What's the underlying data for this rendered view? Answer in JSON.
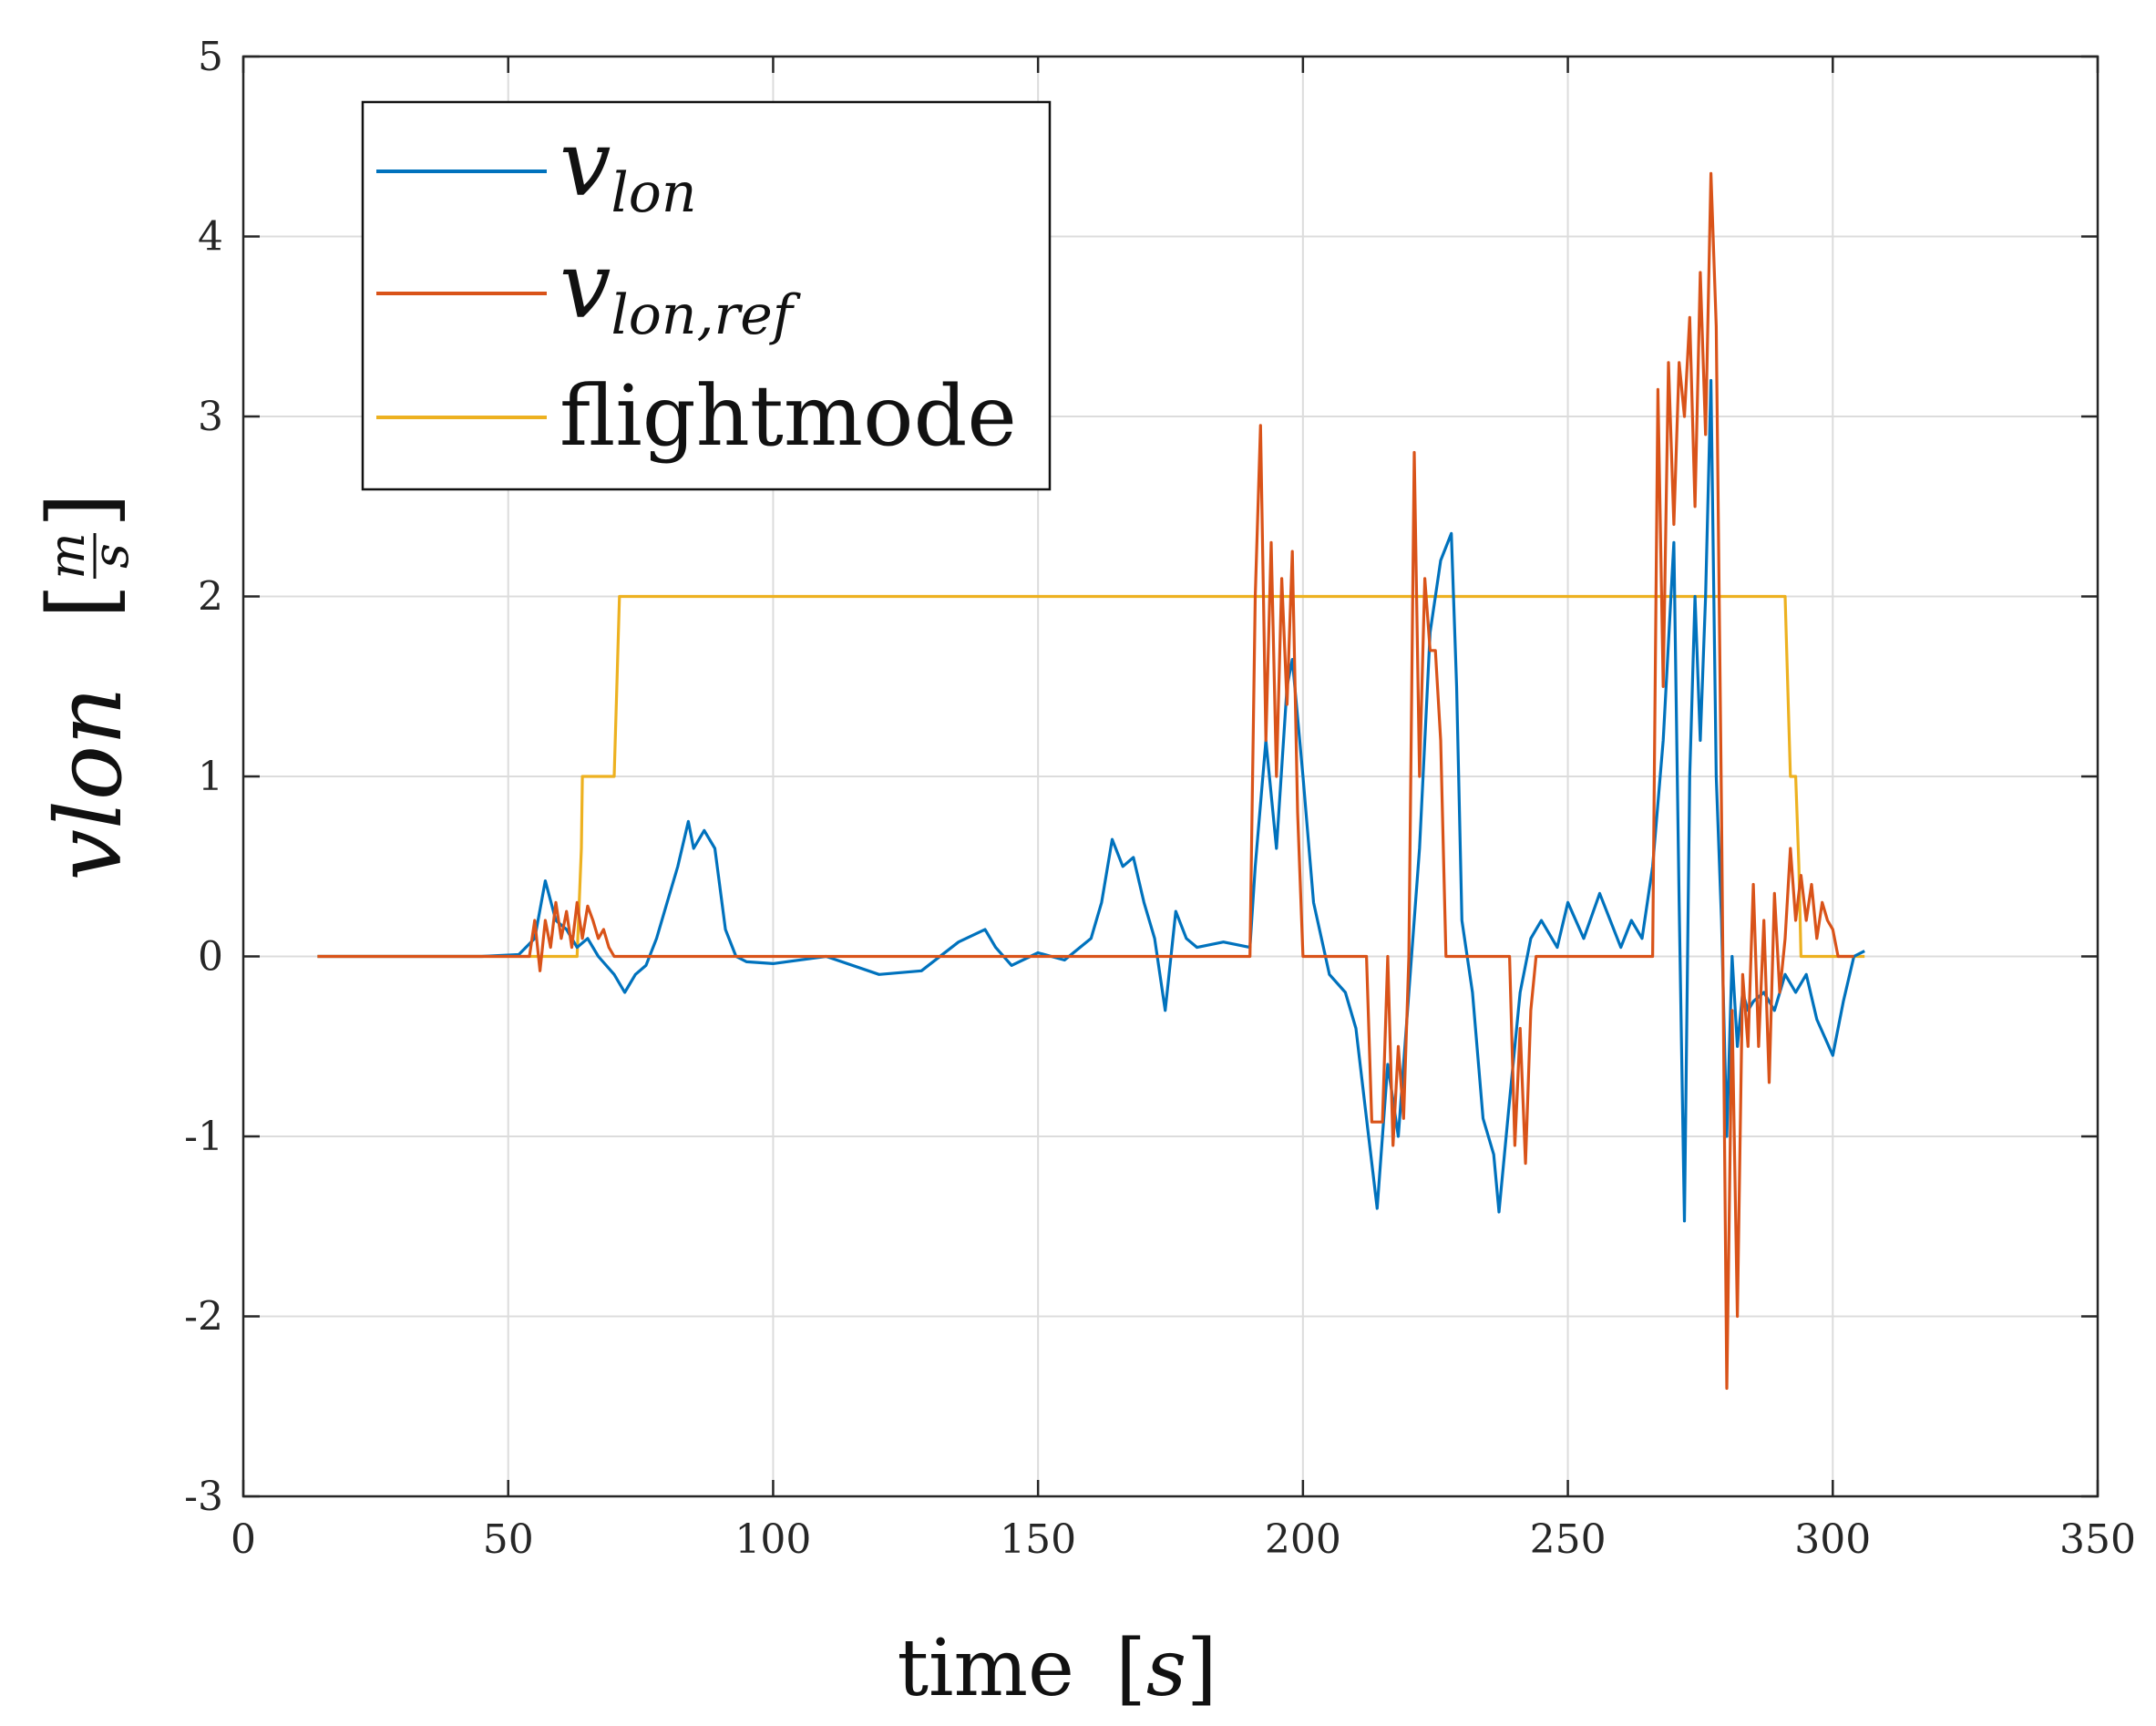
{
  "chart_data": {
    "type": "line",
    "title": "",
    "xlabel": "time",
    "xlabel_unit": "s",
    "ylabel": "vlon",
    "ylabel_unit_num": "m",
    "ylabel_unit_den": "s",
    "xlim": [
      0,
      350
    ],
    "ylim": [
      -3,
      5
    ],
    "xticks": [
      0,
      50,
      100,
      150,
      200,
      250,
      300,
      350
    ],
    "yticks": [
      -3,
      -2,
      -1,
      0,
      1,
      2,
      3,
      4,
      5
    ],
    "grid": true,
    "legend_position": "top-left",
    "series": [
      {
        "name": "v_lon",
        "label_main": "v",
        "label_sub": "lon",
        "color": "#0072BD",
        "x": [
          14,
          30,
          45,
          52,
          55,
          57,
          59,
          61,
          63,
          65,
          67,
          70,
          72,
          74,
          76,
          78,
          80,
          82,
          84,
          85,
          87,
          89,
          91,
          93,
          95,
          100,
          110,
          120,
          128,
          135,
          140,
          142,
          145,
          150,
          155,
          160,
          162,
          164,
          166,
          168,
          170,
          172,
          174,
          176,
          178,
          180,
          185,
          190,
          191,
          193,
          195,
          197,
          198,
          200,
          202,
          205,
          208,
          210,
          212,
          214,
          216,
          218,
          220,
          222,
          224,
          226,
          228,
          229,
          230,
          232,
          234,
          236,
          237,
          239,
          241,
          243,
          245,
          248,
          250,
          253,
          256,
          260,
          262,
          264,
          266,
          268,
          270,
          271,
          272,
          273,
          274,
          275,
          276,
          277,
          278,
          279,
          280,
          281,
          282,
          283,
          284,
          285,
          287,
          289,
          291,
          293,
          295,
          297,
          300,
          302,
          304,
          306
        ],
        "y": [
          0,
          0,
          0,
          0.01,
          0.1,
          0.42,
          0.2,
          0.15,
          0.05,
          0.1,
          0,
          -0.1,
          -0.2,
          -0.1,
          -0.05,
          0.1,
          0.3,
          0.5,
          0.75,
          0.6,
          0.7,
          0.6,
          0.15,
          0,
          -0.03,
          -0.04,
          0,
          -0.1,
          -0.08,
          0.08,
          0.15,
          0.05,
          -0.05,
          0.02,
          -0.02,
          0.1,
          0.3,
          0.65,
          0.5,
          0.55,
          0.3,
          0.1,
          -0.3,
          0.25,
          0.1,
          0.05,
          0.08,
          0.05,
          0.5,
          1.2,
          0.6,
          1.5,
          1.65,
          1.0,
          0.3,
          -0.1,
          -0.2,
          -0.4,
          -0.9,
          -1.4,
          -0.6,
          -1.0,
          -0.2,
          0.6,
          1.8,
          2.2,
          2.35,
          1.5,
          0.2,
          -0.2,
          -0.9,
          -1.1,
          -1.42,
          -0.8,
          -0.2,
          0.1,
          0.2,
          0.05,
          0.3,
          0.1,
          0.35,
          0.05,
          0.2,
          0.1,
          0.5,
          1.2,
          2.3,
          0.3,
          -1.47,
          1.0,
          2.0,
          1.2,
          2.0,
          3.2,
          1.0,
          0.2,
          -1.0,
          0.0,
          -0.5,
          -0.2,
          -0.3,
          -0.25,
          -0.2,
          -0.3,
          -0.1,
          -0.2,
          -0.1,
          -0.35,
          -0.55,
          -0.25,
          0,
          0.03
        ]
      },
      {
        "name": "v_lon,ref",
        "label_main": "v",
        "label_sub": "lon,ref",
        "color": "#D95319",
        "x": [
          14,
          50,
          54,
          55,
          56,
          57,
          58,
          59,
          60,
          61,
          62,
          63,
          64,
          65,
          66,
          67,
          68,
          69,
          70,
          71,
          72,
          100,
          150,
          190,
          191,
          192,
          193,
          194,
          195,
          196,
          197,
          198,
          199,
          200,
          212,
          213,
          214,
          215,
          216,
          217,
          218,
          219,
          220,
          221,
          222,
          223,
          224,
          225,
          226,
          227,
          228,
          230,
          239,
          240,
          241,
          242,
          243,
          244,
          245,
          266,
          267,
          268,
          269,
          270,
          271,
          272,
          273,
          274,
          275,
          276,
          277,
          278,
          279,
          280,
          281,
          282,
          283,
          284,
          285,
          286,
          287,
          288,
          289,
          290,
          291,
          292,
          293,
          294,
          295,
          296,
          297,
          298,
          299,
          300,
          301,
          302,
          303,
          304
        ],
        "y": [
          0,
          0,
          0,
          0.2,
          -0.08,
          0.2,
          0.05,
          0.3,
          0.1,
          0.25,
          0.05,
          0.3,
          0.1,
          0.28,
          0.2,
          0.1,
          0.15,
          0.05,
          0,
          0,
          0,
          0,
          0,
          0,
          2.0,
          2.95,
          1.2,
          2.3,
          1.0,
          2.1,
          1.4,
          2.25,
          0.8,
          0,
          0,
          -0.92,
          -0.92,
          -0.92,
          0,
          -1.05,
          -0.5,
          -0.9,
          0,
          2.8,
          1.0,
          2.1,
          1.7,
          1.7,
          1.2,
          0,
          0,
          0,
          0,
          -1.05,
          -0.4,
          -1.15,
          -0.3,
          0,
          0,
          0,
          3.15,
          1.5,
          3.3,
          2.4,
          3.3,
          3.0,
          3.55,
          2.5,
          3.8,
          2.9,
          4.35,
          3.5,
          0.8,
          -2.4,
          -0.3,
          -2.0,
          -0.1,
          -0.5,
          0.4,
          -0.5,
          0.2,
          -0.7,
          0.35,
          -0.2,
          0.1,
          0.6,
          0.2,
          0.45,
          0.2,
          0.4,
          0.1,
          0.3,
          0.2,
          0.15,
          0,
          0,
          0,
          0
        ]
      },
      {
        "name": "flightmode",
        "label_main": "flightmode",
        "label_sub": "",
        "color": "#EDB120",
        "x": [
          14,
          63,
          63.8,
          64,
          70,
          70.6,
          71,
          200,
          291,
          291.4,
          292,
          293,
          293.6,
          294,
          306
        ],
        "y": [
          0,
          0,
          0.6,
          1,
          1,
          1.6,
          2,
          2,
          2,
          1.6,
          1,
          1,
          0.5,
          0,
          0
        ]
      }
    ]
  }
}
